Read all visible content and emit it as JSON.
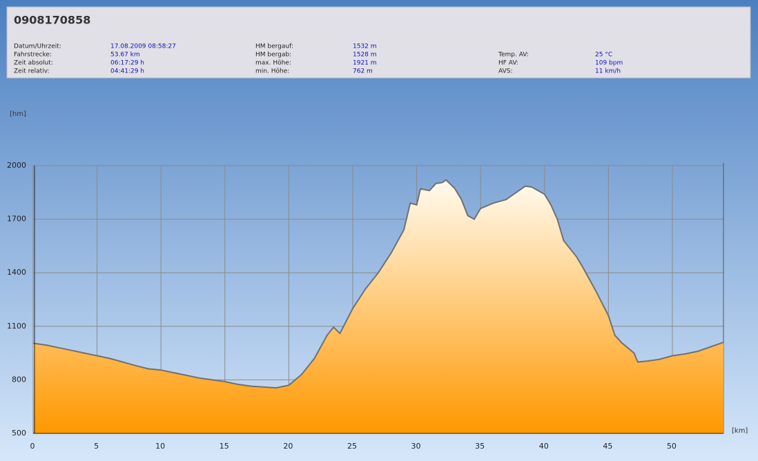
{
  "header": {
    "title": "0908170858",
    "columns": [
      [
        {
          "label": "Datum/Uhrzeit:",
          "value": "17.08.2009 08:58:27"
        },
        {
          "label": "Fahrstrecke:",
          "value": "53.67 km"
        },
        {
          "label": "Zeit absolut:",
          "value": "06:17:29 h"
        },
        {
          "label": "Zeit relativ:",
          "value": "04:41:29 h"
        }
      ],
      [
        {
          "label": "HM bergauf:",
          "value": "1532 m"
        },
        {
          "label": "HM bergab:",
          "value": "1528 m"
        },
        {
          "label": "max. Höhe:",
          "value": "1921 m"
        },
        {
          "label": "min. Höhe:",
          "value": "762 m"
        }
      ],
      [
        {
          "label": "Temp. AV:",
          "value": "25 °C"
        },
        {
          "label": "HF AV:",
          "value": "109 bpm"
        },
        {
          "label": "AVS:",
          "value": "11 km/h"
        }
      ]
    ]
  },
  "chart_data": {
    "type": "area",
    "y_label": "[hm]",
    "x_label": "[km]",
    "x": [
      0,
      1,
      2,
      3,
      4,
      5,
      6,
      7,
      8,
      9,
      10,
      11,
      12,
      13,
      14,
      15,
      16,
      17,
      18,
      19,
      20,
      21,
      22,
      23,
      23.5,
      24,
      24.5,
      25,
      26,
      27,
      28,
      29,
      29.5,
      30,
      30.3,
      31,
      31.5,
      32,
      32.3,
      33,
      33.5,
      34,
      34.5,
      35,
      36,
      37,
      38,
      38.5,
      39,
      40,
      40.5,
      41,
      41.5,
      42.5,
      43,
      44,
      45,
      45.5,
      46,
      47,
      47.3,
      48,
      49,
      50,
      51,
      52,
      53,
      54
    ],
    "values": [
      1005,
      995,
      980,
      965,
      950,
      935,
      920,
      900,
      880,
      862,
      855,
      840,
      825,
      810,
      800,
      790,
      775,
      765,
      760,
      755,
      770,
      830,
      920,
      1050,
      1095,
      1060,
      1130,
      1200,
      1310,
      1400,
      1510,
      1640,
      1790,
      1780,
      1870,
      1860,
      1900,
      1905,
      1920,
      1870,
      1810,
      1720,
      1700,
      1760,
      1790,
      1810,
      1860,
      1885,
      1880,
      1840,
      1780,
      1700,
      1580,
      1490,
      1430,
      1300,
      1160,
      1050,
      1010,
      950,
      900,
      905,
      915,
      935,
      945,
      960,
      985,
      1010
    ],
    "xlim": [
      0,
      54
    ],
    "ylim": [
      500,
      2000
    ],
    "xticks": [
      0,
      5,
      10,
      15,
      20,
      25,
      30,
      35,
      40,
      45,
      50
    ],
    "yticks": [
      500,
      800,
      1100,
      1400,
      1700,
      2000
    ],
    "grid": true,
    "line_color": "#707070",
    "fill_top": "#fffbf0",
    "fill_bottom": "#ff9800"
  }
}
